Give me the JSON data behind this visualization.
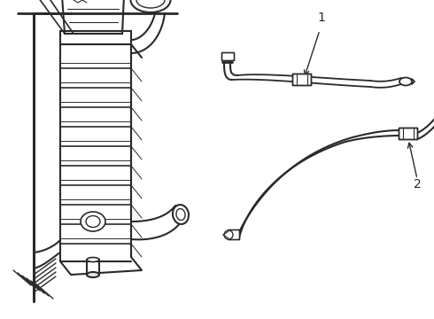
{
  "background_color": "#ffffff",
  "line_color": "#2a2a2a",
  "figsize": [
    4.9,
    3.6
  ],
  "dpi": 100,
  "label_1": "1",
  "label_2": "2",
  "label_fontsize": 10,
  "xlim": [
    0,
    490
  ],
  "ylim": [
    0,
    360
  ]
}
